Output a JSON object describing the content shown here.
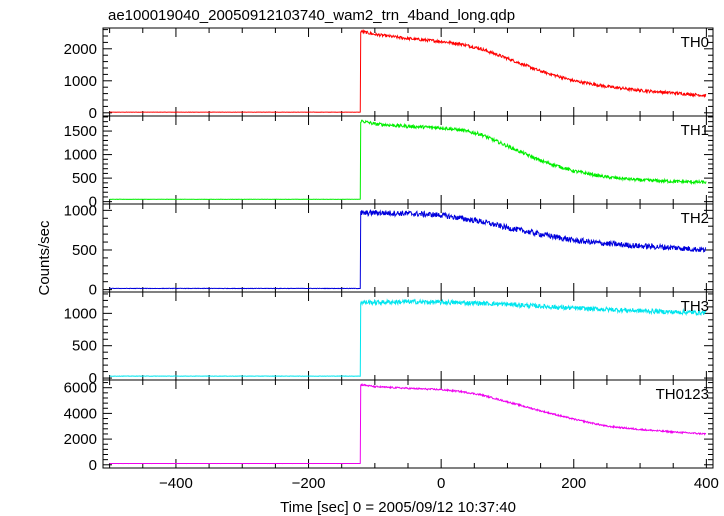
{
  "chart_data": {
    "type": "line",
    "title": "ae100019040_20050912103740_wam2_trn_4band_long.qdp",
    "xlabel": "Time [sec] 0 = 2005/09/12 10:37:40",
    "ylabel": "Counts/sec",
    "xlim": [
      -510,
      410
    ],
    "xticks": [
      -400,
      -200,
      0,
      200,
      400
    ],
    "xtick_labels": [
      "−400",
      "−200",
      "0",
      "200",
      "400"
    ],
    "grid": false,
    "legend": "none",
    "panels": [
      {
        "label": "TH0",
        "color": "#ff0000",
        "ylim": [
          -100,
          2650
        ],
        "yticks": [
          0,
          1000,
          2000
        ],
        "background": 20,
        "onset": -122,
        "profile": [
          [
            -122,
            2550
          ],
          [
            -100,
            2450
          ],
          [
            -50,
            2320
          ],
          [
            0,
            2230
          ],
          [
            30,
            2150
          ],
          [
            60,
            2000
          ],
          [
            100,
            1700
          ],
          [
            150,
            1300
          ],
          [
            200,
            1000
          ],
          [
            250,
            820
          ],
          [
            300,
            700
          ],
          [
            350,
            620
          ],
          [
            400,
            540
          ]
        ],
        "noise": 45
      },
      {
        "label": "TH1",
        "color": "#00ee00",
        "ylim": [
          -50,
          1820
        ],
        "yticks": [
          0,
          500,
          1000,
          1500
        ],
        "background": 50,
        "onset": -122,
        "profile": [
          [
            -122,
            1720
          ],
          [
            -100,
            1650
          ],
          [
            -50,
            1600
          ],
          [
            0,
            1570
          ],
          [
            30,
            1520
          ],
          [
            60,
            1430
          ],
          [
            100,
            1180
          ],
          [
            150,
            870
          ],
          [
            200,
            650
          ],
          [
            250,
            520
          ],
          [
            300,
            460
          ],
          [
            350,
            430
          ],
          [
            400,
            410
          ]
        ],
        "noise": 35
      },
      {
        "label": "TH2",
        "color": "#0000dd",
        "ylim": [
          -30,
          1080
        ],
        "yticks": [
          0,
          500,
          1000
        ],
        "background": 15,
        "onset": -122,
        "profile": [
          [
            -122,
            960
          ],
          [
            -100,
            970
          ],
          [
            -50,
            960
          ],
          [
            0,
            940
          ],
          [
            30,
            900
          ],
          [
            60,
            860
          ],
          [
            100,
            780
          ],
          [
            150,
            700
          ],
          [
            200,
            620
          ],
          [
            250,
            580
          ],
          [
            300,
            550
          ],
          [
            350,
            530
          ],
          [
            400,
            500
          ]
        ],
        "noise": 35
      },
      {
        "label": "TH3",
        "color": "#00e5ee",
        "ylim": [
          -30,
          1330
        ],
        "yticks": [
          0,
          500,
          1000
        ],
        "background": 30,
        "onset": -122,
        "profile": [
          [
            -122,
            1170
          ],
          [
            -100,
            1170
          ],
          [
            -50,
            1180
          ],
          [
            0,
            1170
          ],
          [
            50,
            1160
          ],
          [
            100,
            1140
          ],
          [
            150,
            1110
          ],
          [
            200,
            1080
          ],
          [
            250,
            1060
          ],
          [
            300,
            1040
          ],
          [
            350,
            1020
          ],
          [
            400,
            1010
          ]
        ],
        "noise": 35
      },
      {
        "label": "TH0123",
        "color": "#ee00ee",
        "ylim": [
          -250,
          6600
        ],
        "yticks": [
          0,
          2000,
          4000,
          6000
        ],
        "background": 100,
        "onset": -122,
        "profile": [
          [
            -122,
            6250
          ],
          [
            -100,
            6080
          ],
          [
            -50,
            5950
          ],
          [
            0,
            5850
          ],
          [
            30,
            5700
          ],
          [
            60,
            5450
          ],
          [
            100,
            4900
          ],
          [
            150,
            4200
          ],
          [
            200,
            3550
          ],
          [
            250,
            3000
          ],
          [
            300,
            2750
          ],
          [
            350,
            2550
          ],
          [
            400,
            2400
          ]
        ],
        "noise": 60
      }
    ]
  }
}
